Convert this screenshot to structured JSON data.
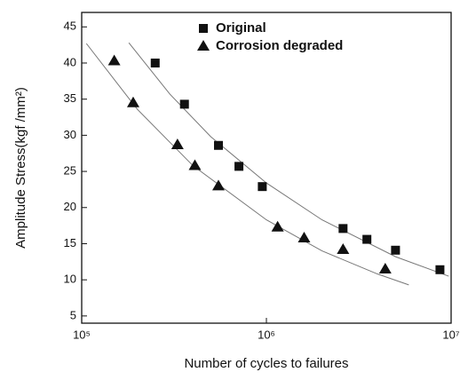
{
  "chart_data": {
    "type": "scatter",
    "ylabel": "Amplitude Stress(kgf /mm²)",
    "xlabel": "Number of cycles to failures",
    "xscale": "log",
    "xlim": [
      100000,
      10000000
    ],
    "xticks": [
      {
        "value": 100000,
        "label": "10⁵"
      },
      {
        "value": 1000000,
        "label": "10⁶"
      },
      {
        "value": 10000000,
        "label": "10⁷"
      }
    ],
    "ylim": [
      4,
      47
    ],
    "yticks": [
      5,
      10,
      15,
      20,
      25,
      30,
      35,
      40,
      45
    ],
    "legend": "top",
    "series": [
      {
        "name": "Original",
        "color": "#111111",
        "marker": "square",
        "x": [
          250000,
          360000,
          550000,
          710000,
          950000,
          2600000,
          3500000,
          5000000,
          8700000
        ],
        "values": [
          40,
          34.3,
          28.6,
          25.7,
          22.9,
          17.1,
          15.6,
          14.1,
          11.4
        ],
        "fit": {
          "color": "#777777",
          "x": [
            180000,
            300000,
            500000,
            1000000,
            2000000,
            5000000,
            9700000
          ],
          "values": [
            42.8,
            35.7,
            29.8,
            23.4,
            18.3,
            13.2,
            10.5
          ]
        }
      },
      {
        "name": "Corrosion degraded",
        "color": "#111111",
        "marker": "triangle",
        "x": [
          150000,
          190000,
          330000,
          410000,
          550000,
          1150000,
          1600000,
          2600000,
          4400000
        ],
        "values": [
          40.3,
          34.5,
          28.7,
          25.8,
          23,
          17.3,
          15.8,
          14.2,
          11.5
        ],
        "fit": {
          "color": "#777777",
          "x": [
            106000,
            200000,
            400000,
            1000000,
            2000000,
            4000000,
            5900000
          ],
          "values": [
            42.7,
            33.6,
            25.8,
            18.3,
            14,
            10.8,
            9.3
          ]
        }
      }
    ]
  }
}
